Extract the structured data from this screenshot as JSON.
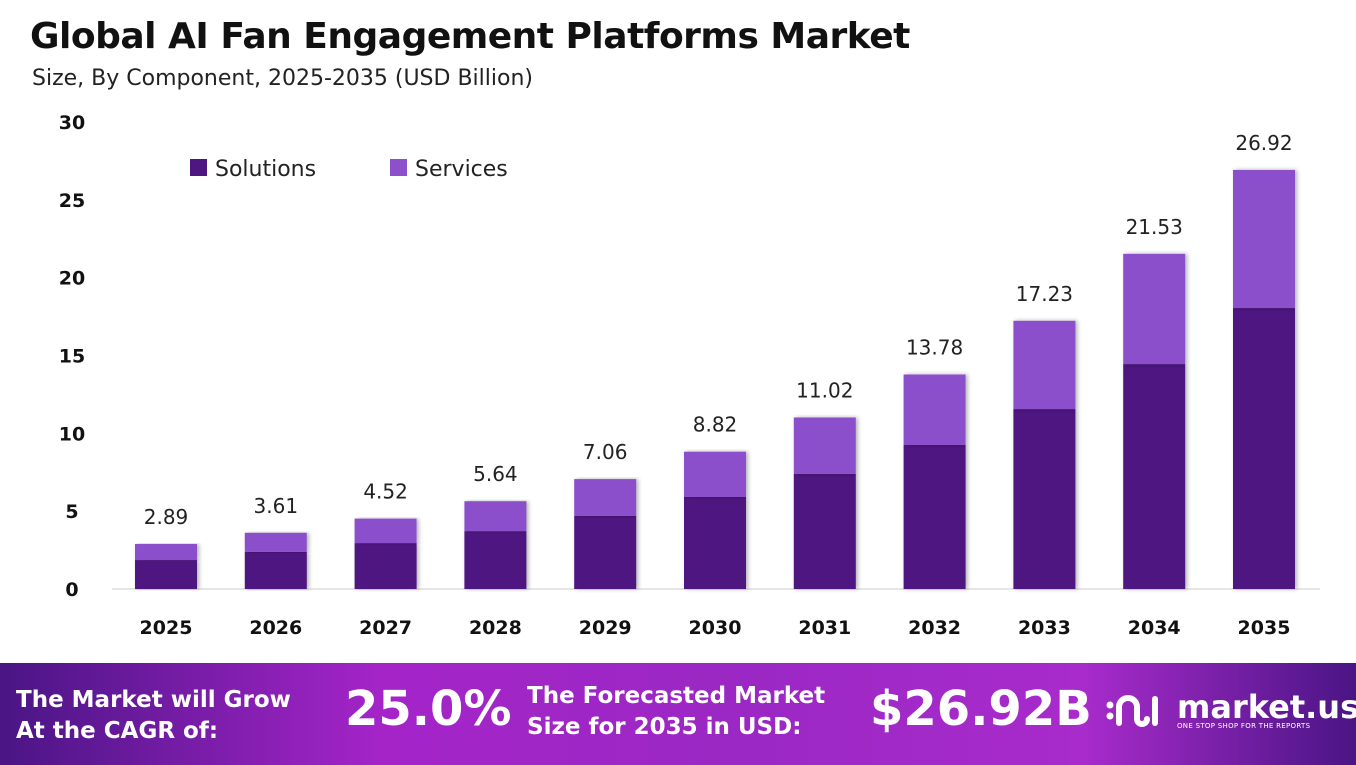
{
  "chart_data": {
    "type": "bar",
    "stacked": true,
    "title": "Global AI Fan Engagement Platforms Market",
    "subtitle": "Size, By Component, 2025-2035 (USD Billion)",
    "categories": [
      "2025",
      "2026",
      "2027",
      "2028",
      "2029",
      "2030",
      "2031",
      "2032",
      "2033",
      "2034",
      "2035"
    ],
    "series": [
      {
        "name": "Solutions",
        "color": "#4d1680",
        "values": [
          1.86,
          2.38,
          2.95,
          3.72,
          4.69,
          5.91,
          7.39,
          9.25,
          11.56,
          14.45,
          18.05
        ]
      },
      {
        "name": "Services",
        "color": "#8c50cc",
        "values": [
          1.03,
          1.23,
          1.57,
          1.92,
          2.37,
          2.91,
          3.63,
          4.53,
          5.67,
          7.08,
          8.87
        ]
      }
    ],
    "totals": [
      "2.89",
      "3.61",
      "4.52",
      "5.64",
      "7.06",
      "8.82",
      "11.02",
      "13.78",
      "17.23",
      "21.53",
      "26.92"
    ],
    "yticks": [
      "0",
      "5",
      "10",
      "15",
      "20",
      "25",
      "30"
    ],
    "ylim": [
      0,
      30
    ],
    "grid": false,
    "legend_position": "top-left"
  },
  "footer": {
    "cagr_label_line1": "The Market will Grow",
    "cagr_label_line2": "At the CAGR of:",
    "cagr_value": "25.0%",
    "forecast_label_line1": "The Forecasted Market",
    "forecast_label_line2": "Size for 2035 in USD:",
    "forecast_value": "$26.92B",
    "logo_name": "market.us",
    "logo_tagline": "ONE STOP SHOP FOR THE REPORTS"
  }
}
